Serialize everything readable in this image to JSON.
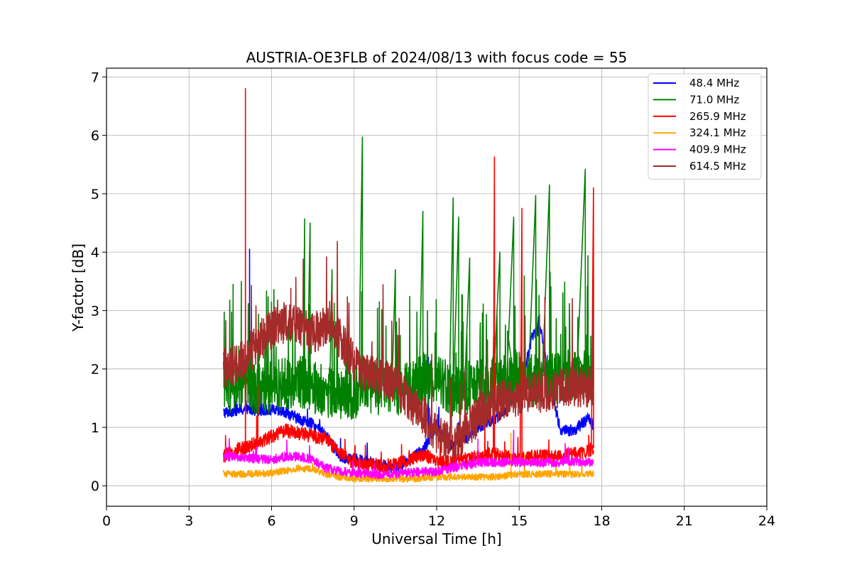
{
  "chart_data": {
    "type": "line",
    "title": "AUSTRIA-OE3FLB of 2024/08/13 with focus code = 55",
    "xlabel": "Universal Time [h]",
    "ylabel": "Y-factor [dB]",
    "xlim": [
      0,
      24
    ],
    "ylim": [
      -0.35,
      7.15
    ],
    "xticks": [
      0,
      3,
      6,
      9,
      12,
      15,
      18,
      21,
      24
    ],
    "yticks": [
      0,
      1,
      2,
      3,
      4,
      5,
      6,
      7
    ],
    "grid": true,
    "legend_position": "top-right",
    "series": [
      {
        "name": "48.4 MHz",
        "color": "#0000ff",
        "x": [
          4.25,
          4.75,
          5.0,
          5.2,
          5.5,
          6.0,
          6.5,
          7.0,
          7.5,
          8.0,
          8.5,
          9.0,
          9.5,
          10.0,
          10.5,
          11.0,
          11.5,
          12.0,
          12.5,
          13.0,
          13.5,
          14.0,
          14.5,
          15.0,
          15.5,
          15.8,
          16.0,
          16.5,
          17.0,
          17.5,
          17.7
        ],
        "values": [
          1.25,
          1.3,
          1.3,
          1.3,
          1.3,
          1.3,
          1.25,
          1.15,
          1.05,
          0.85,
          0.5,
          0.45,
          0.42,
          0.35,
          0.3,
          0.45,
          0.6,
          1.05,
          0.7,
          0.8,
          1.0,
          1.1,
          1.3,
          1.6,
          2.6,
          2.7,
          2.0,
          0.95,
          0.95,
          1.15,
          1.05
        ],
        "spikes": [
          [
            5.2,
            4.05
          ],
          [
            11.7,
            2.2
          ],
          [
            15.7,
            2.9
          ]
        ]
      },
      {
        "name": "71.0 MHz",
        "color": "#008000",
        "x": [
          4.25,
          4.75,
          5.0,
          5.5,
          6.0,
          6.5,
          7.0,
          7.5,
          8.0,
          8.5,
          9.0,
          9.5,
          10.0,
          10.5,
          11.0,
          11.5,
          12.0,
          12.5,
          13.0,
          13.5,
          14.0,
          14.5,
          15.0,
          15.5,
          16.0,
          16.5,
          17.0,
          17.5,
          17.7
        ],
        "values": [
          1.6,
          1.7,
          1.75,
          1.65,
          1.7,
          1.75,
          1.8,
          1.7,
          1.6,
          1.55,
          1.6,
          1.7,
          1.65,
          1.65,
          1.7,
          1.8,
          1.85,
          1.65,
          1.6,
          1.7,
          1.75,
          1.8,
          1.85,
          1.8,
          1.8,
          1.85,
          1.9,
          1.85,
          1.8
        ],
        "spikes": [
          [
            4.6,
            3.45
          ],
          [
            4.9,
            3.5
          ],
          [
            7.2,
            4.57
          ],
          [
            7.4,
            4.5
          ],
          [
            8.2,
            3.7
          ],
          [
            9.3,
            5.97
          ],
          [
            10.5,
            3.7
          ],
          [
            11.5,
            4.7
          ],
          [
            12.6,
            4.93
          ],
          [
            12.8,
            4.6
          ],
          [
            13.2,
            3.9
          ],
          [
            14.3,
            4.0
          ],
          [
            14.8,
            4.6
          ],
          [
            15.6,
            4.97
          ],
          [
            16.1,
            5.15
          ],
          [
            17.4,
            5.42
          ]
        ]
      },
      {
        "name": "265.9 MHz",
        "color": "#ff0000",
        "x": [
          4.25,
          4.75,
          5.0,
          5.5,
          6.0,
          6.5,
          7.0,
          7.5,
          8.0,
          8.5,
          9.0,
          9.5,
          10.0,
          10.5,
          11.0,
          11.5,
          12.0,
          12.5,
          13.0,
          13.5,
          14.0,
          14.5,
          15.0,
          15.5,
          16.0,
          16.5,
          17.0,
          17.5,
          17.7
        ],
        "values": [
          0.5,
          0.6,
          0.65,
          0.75,
          0.85,
          0.95,
          0.9,
          0.85,
          0.8,
          0.55,
          0.4,
          0.35,
          0.35,
          0.35,
          0.45,
          0.55,
          0.4,
          0.4,
          0.45,
          0.5,
          0.55,
          0.5,
          0.45,
          0.5,
          0.5,
          0.5,
          0.55,
          0.6,
          0.65
        ],
        "spikes": [
          [
            5.05,
            6.8
          ],
          [
            5.5,
            1.7
          ],
          [
            14.1,
            5.63
          ],
          [
            15.1,
            4.75
          ],
          [
            17.7,
            5.1
          ]
        ]
      },
      {
        "name": "324.1 MHz",
        "color": "#ffa500",
        "x": [
          4.25,
          5.0,
          6.0,
          7.0,
          7.5,
          8.0,
          8.5,
          9.0,
          10.0,
          11.0,
          12.0,
          13.0,
          14.0,
          15.0,
          16.0,
          17.0,
          17.7
        ],
        "values": [
          0.2,
          0.2,
          0.22,
          0.3,
          0.28,
          0.2,
          0.15,
          0.12,
          0.12,
          0.12,
          0.15,
          0.15,
          0.15,
          0.2,
          0.2,
          0.2,
          0.2
        ],
        "spikes": [
          [
            14.7,
            0.9
          ],
          [
            15.2,
            0.55
          ]
        ]
      },
      {
        "name": "409.9 MHz",
        "color": "#ff00ff",
        "x": [
          4.25,
          5.0,
          6.0,
          6.5,
          7.0,
          7.5,
          8.0,
          8.5,
          9.0,
          10.0,
          11.0,
          12.0,
          12.5,
          13.0,
          13.5,
          14.0,
          14.5,
          15.0,
          16.0,
          17.0,
          17.7
        ],
        "values": [
          0.5,
          0.48,
          0.45,
          0.5,
          0.5,
          0.45,
          0.3,
          0.25,
          0.22,
          0.2,
          0.22,
          0.25,
          0.3,
          0.35,
          0.4,
          0.4,
          0.4,
          0.4,
          0.4,
          0.42,
          0.4
        ],
        "spikes": [
          [
            13.5,
            0.8
          ],
          [
            14.8,
            0.95
          ]
        ]
      },
      {
        "name": "614.5 MHz",
        "color": "#a52a2a",
        "x": [
          4.25,
          4.75,
          5.0,
          5.5,
          6.0,
          6.5,
          7.0,
          7.5,
          8.0,
          8.5,
          9.0,
          9.5,
          10.0,
          10.5,
          11.0,
          11.5,
          12.0,
          12.5,
          13.0,
          13.5,
          14.0,
          14.5,
          15.0,
          15.5,
          16.0,
          16.5,
          17.0,
          17.5,
          17.7
        ],
        "values": [
          2.0,
          2.1,
          2.2,
          2.4,
          2.7,
          2.8,
          2.7,
          2.6,
          2.75,
          2.5,
          2.1,
          1.9,
          1.85,
          1.7,
          1.45,
          1.2,
          0.9,
          0.7,
          0.9,
          1.2,
          1.4,
          1.5,
          1.55,
          1.6,
          1.6,
          1.65,
          1.7,
          1.7,
          1.7
        ],
        "spikes": [
          [
            6.7,
            3.38
          ],
          [
            8.2,
            3.3
          ],
          [
            17.7,
            3.5
          ]
        ]
      }
    ]
  }
}
